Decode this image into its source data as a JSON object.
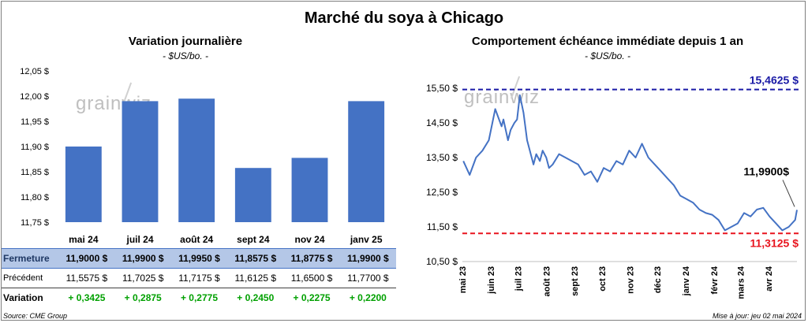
{
  "title": "Marché du soya à Chicago",
  "left": {
    "title": "Variation journalière",
    "unit": "- $US/bo. -",
    "watermark": "grainwiz",
    "table": {
      "rows": [
        {
          "label": "Fermeture",
          "values": [
            "11,9000  $",
            "11,9900  $",
            "11,9950  $",
            "11,8575  $",
            "11,8775  $",
            "11,9900  $"
          ]
        },
        {
          "label": "Précédent",
          "values": [
            "11,5575  $",
            "11,7025  $",
            "11,7175  $",
            "11,6125  $",
            "11,6500  $",
            "11,7700  $"
          ]
        },
        {
          "label": "Variation",
          "values": [
            "+ 0,3425",
            "+ 0,2875",
            "+ 0,2775",
            "+ 0,2450",
            "+ 0,2275",
            "+ 0,2200"
          ]
        }
      ]
    }
  },
  "right": {
    "title": "Comportement  échéance immédiate depuis 1 an",
    "unit": "- $US/bo. -",
    "watermark": "grainwiz"
  },
  "footer": {
    "source": "Source: CME Group",
    "updated": "Mise à jour: jeu 02 mai 2024"
  },
  "colors": {
    "bar": "#4472c4",
    "line": "#4472c4",
    "max_line": "#1a1aa6",
    "min_line": "#e8141e",
    "green": "#00a000"
  },
  "chart_data": [
    {
      "type": "bar",
      "categories": [
        "mai 24",
        "juil 24",
        "août 24",
        "sept 24",
        "nov 24",
        "janv 25"
      ],
      "values": [
        11.9,
        11.99,
        11.995,
        11.8575,
        11.8775,
        11.99
      ],
      "ylim": [
        11.75,
        12.05
      ],
      "yticks": [
        11.75,
        11.8,
        11.85,
        11.9,
        11.95,
        12.0,
        12.05
      ],
      "ytick_labels": [
        "11,75 $",
        "11,80 $",
        "11,85 $",
        "11,90 $",
        "11,95 $",
        "12,00 $",
        "12,05 $"
      ],
      "grid": false
    },
    {
      "type": "line",
      "x": [
        "2023-05-02",
        "2023-05-09",
        "2023-05-16",
        "2023-05-23",
        "2023-05-30",
        "2023-06-06",
        "2023-06-13",
        "2023-06-15",
        "2023-06-20",
        "2023-06-23",
        "2023-06-27",
        "2023-06-30",
        "2023-07-03",
        "2023-07-07",
        "2023-07-11",
        "2023-07-18",
        "2023-07-21",
        "2023-07-25",
        "2023-07-28",
        "2023-08-01",
        "2023-08-04",
        "2023-08-08",
        "2023-08-15",
        "2023-08-22",
        "2023-08-29",
        "2023-09-05",
        "2023-09-12",
        "2023-09-19",
        "2023-09-26",
        "2023-10-03",
        "2023-10-10",
        "2023-10-17",
        "2023-10-24",
        "2023-10-31",
        "2023-11-07",
        "2023-11-14",
        "2023-11-21",
        "2023-11-28",
        "2023-12-05",
        "2023-12-12",
        "2023-12-19",
        "2023-12-26",
        "2024-01-02",
        "2024-01-09",
        "2024-01-16",
        "2024-01-23",
        "2024-01-30",
        "2024-02-06",
        "2024-02-13",
        "2024-02-20",
        "2024-02-27",
        "2024-03-05",
        "2024-03-12",
        "2024-03-19",
        "2024-03-26",
        "2024-04-02",
        "2024-04-09",
        "2024-04-16",
        "2024-04-23",
        "2024-04-30",
        "2024-05-02"
      ],
      "y": [
        13.4,
        13.0,
        13.5,
        13.7,
        14.0,
        14.9,
        14.4,
        14.6,
        14.0,
        14.3,
        14.5,
        14.6,
        15.3,
        14.8,
        14.0,
        13.3,
        13.6,
        13.4,
        13.7,
        13.5,
        13.2,
        13.3,
        13.6,
        13.5,
        13.4,
        13.3,
        13.0,
        13.1,
        12.8,
        13.2,
        13.1,
        13.4,
        13.3,
        13.7,
        13.5,
        13.9,
        13.5,
        13.3,
        13.1,
        12.9,
        12.7,
        12.4,
        12.3,
        12.2,
        12.0,
        11.9,
        11.85,
        11.7,
        11.4,
        11.5,
        11.6,
        11.9,
        11.8,
        12.0,
        12.05,
        11.8,
        11.6,
        11.4,
        11.5,
        11.7,
        11.99
      ],
      "xticks": [
        "mai 23",
        "juin 23",
        "juil 23",
        "août 23",
        "sept 23",
        "oct 23",
        "nov 23",
        "déc 23",
        "janv 24",
        "févr 24",
        "mars 24",
        "avr 24"
      ],
      "ylim": [
        10.5,
        16.0
      ],
      "yticks": [
        10.5,
        11.5,
        12.5,
        13.5,
        14.5,
        15.5
      ],
      "ytick_labels": [
        "10,50 $",
        "11,50 $",
        "12,50 $",
        "13,50 $",
        "14,50 $",
        "15,50 $"
      ],
      "hlines": [
        {
          "value": 15.4625,
          "label": "15,4625  $",
          "style": "dashed",
          "color": "#1a1aa6"
        },
        {
          "value": 11.3125,
          "label": "11,3125  $",
          "style": "dashed",
          "color": "#e8141e"
        }
      ],
      "annotations": [
        {
          "text": "11,9900$",
          "x": "2024-05-02",
          "y": 11.99
        }
      ],
      "grid": false
    }
  ]
}
